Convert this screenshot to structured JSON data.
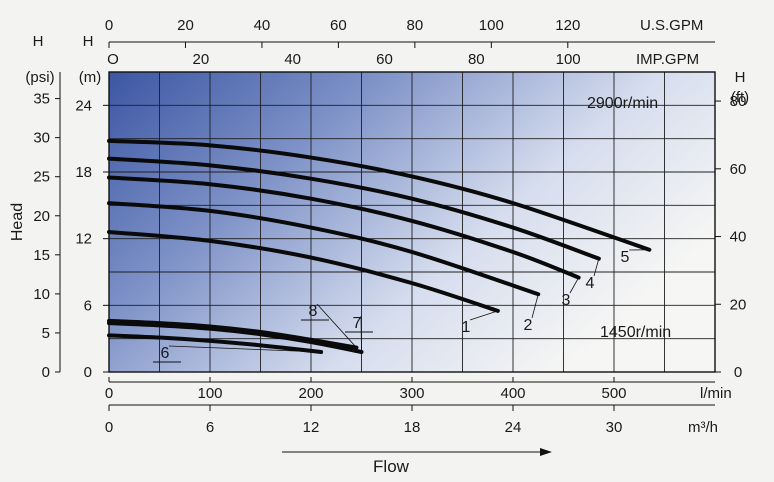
{
  "chart_data": {
    "type": "line",
    "title": "",
    "speed_labels": [
      "2900r/min",
      "1450r/min"
    ],
    "x_primary": {
      "unit": "l/min",
      "ticks": [
        0,
        100,
        200,
        300,
        400,
        500
      ],
      "range": [
        0,
        600
      ]
    },
    "x_secondary": {
      "unit": "m³/h",
      "ticks": [
        0,
        6,
        12,
        18,
        24,
        30
      ]
    },
    "x_top_us": {
      "unit": "U.S.GPM",
      "ticks": [
        0,
        20,
        40,
        60,
        80,
        100,
        120
      ]
    },
    "x_top_imp": {
      "unit": "IMP.GPM",
      "ticks": [
        0,
        20,
        40,
        60,
        80,
        100
      ]
    },
    "y_primary": {
      "unit": "H (m)",
      "ticks": [
        0,
        6,
        12,
        18,
        24
      ],
      "range": [
        0,
        27
      ]
    },
    "y_psi": {
      "unit": "H (psi)",
      "ticks": [
        0,
        5,
        10,
        15,
        20,
        25,
        30,
        35
      ]
    },
    "y_ft": {
      "unit": "H (ft)",
      "ticks": [
        0,
        20,
        40,
        60,
        80
      ]
    },
    "ylabel": "Head",
    "xlabel": "Flow",
    "grid": true,
    "series": [
      {
        "name": "1",
        "x": [
          0,
          100,
          200,
          300,
          385
        ],
        "y": [
          12.6,
          11.8,
          10.3,
          8.0,
          5.5
        ]
      },
      {
        "name": "2",
        "x": [
          0,
          100,
          200,
          300,
          425
        ],
        "y": [
          15.2,
          14.5,
          13.0,
          10.8,
          7.0
        ]
      },
      {
        "name": "3",
        "x": [
          0,
          100,
          200,
          300,
          400,
          465
        ],
        "y": [
          17.5,
          16.9,
          15.6,
          13.6,
          10.8,
          8.5
        ]
      },
      {
        "name": "4",
        "x": [
          0,
          100,
          200,
          300,
          400,
          485
        ],
        "y": [
          19.2,
          18.6,
          17.4,
          15.6,
          13.0,
          10.2
        ]
      },
      {
        "name": "5",
        "x": [
          0,
          100,
          200,
          300,
          400,
          535
        ],
        "y": [
          20.8,
          20.4,
          19.3,
          17.6,
          15.2,
          11.0
        ]
      },
      {
        "name": "6",
        "x": [
          0,
          50,
          100,
          150,
          210
        ],
        "y": [
          3.3,
          3.1,
          2.8,
          2.4,
          1.8
        ]
      },
      {
        "name": "7",
        "x": [
          0,
          50,
          100,
          150,
          200,
          250
        ],
        "y": [
          4.4,
          4.2,
          3.9,
          3.4,
          2.7,
          1.8
        ]
      },
      {
        "name": "8",
        "x": [
          0,
          50,
          100,
          150,
          200,
          245
        ],
        "y": [
          4.6,
          4.4,
          4.1,
          3.6,
          2.9,
          2.2
        ]
      }
    ]
  }
}
